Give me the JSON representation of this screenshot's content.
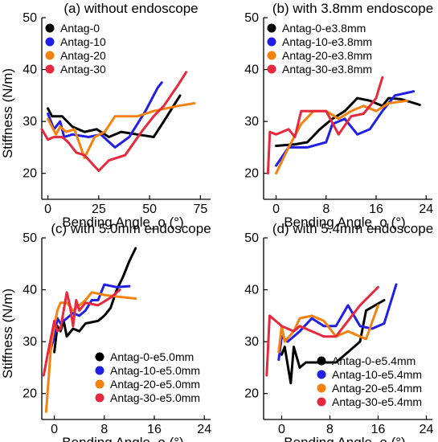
{
  "colors": {
    "Antag-0": "#000000",
    "Antag-10": "#1f1fe6",
    "Antag-20": "#f5820f",
    "Antag-30": "#e8283c"
  },
  "chart_data": [
    {
      "type": "line",
      "title": "(a) without endoscope",
      "xlabel": "Bending Angle_o (°)",
      "ylabel": "Stiffness (N/m)",
      "xlim": [
        -3,
        80
      ],
      "ylim": [
        15,
        50
      ],
      "xticks": [
        0,
        25,
        50,
        75
      ],
      "yticks": [
        20,
        30,
        40,
        50
      ],
      "legend": "top-left",
      "series": [
        {
          "name": "Antag-0",
          "color": "#000000",
          "points": [
            [
              0,
              32.5
            ],
            [
              2,
              31
            ],
            [
              7,
              31
            ],
            [
              12,
              29
            ],
            [
              18,
              28
            ],
            [
              24,
              28.5
            ],
            [
              30,
              27
            ],
            [
              36,
              28
            ],
            [
              44,
              27.5
            ],
            [
              52,
              27
            ],
            [
              57,
              30
            ],
            [
              65,
              35
            ]
          ]
        },
        {
          "name": "Antag-10",
          "color": "#1f1fe6",
          "points": [
            [
              0,
              31.5
            ],
            [
              3,
              28.5
            ],
            [
              6,
              30
            ],
            [
              8,
              27
            ],
            [
              12,
              27.5
            ],
            [
              20,
              27
            ],
            [
              26,
              27.5
            ],
            [
              33,
              25
            ],
            [
              40,
              27
            ],
            [
              48,
              32
            ],
            [
              54,
              36.5
            ],
            [
              56,
              37.5
            ]
          ]
        },
        {
          "name": "Antag-20",
          "color": "#f5820f",
          "points": [
            [
              0,
              30.5
            ],
            [
              4,
              27.5
            ],
            [
              6,
              29
            ],
            [
              9,
              28
            ],
            [
              13,
              28.5
            ],
            [
              18,
              23
            ],
            [
              23,
              27
            ],
            [
              28,
              28
            ],
            [
              33,
              31
            ],
            [
              44,
              31
            ],
            [
              52,
              32
            ],
            [
              64,
              33
            ],
            [
              72,
              33.5
            ]
          ]
        },
        {
          "name": "Antag-30",
          "color": "#e8283c",
          "points": [
            [
              -3,
              28.5
            ],
            [
              0,
              26.5
            ],
            [
              3,
              27
            ],
            [
              7,
              27
            ],
            [
              10,
              26
            ],
            [
              14,
              24
            ],
            [
              18,
              23.5
            ],
            [
              25,
              20.5
            ],
            [
              30,
              22.5
            ],
            [
              38,
              23.5
            ],
            [
              46,
              28
            ],
            [
              52,
              31
            ],
            [
              57,
              33
            ],
            [
              64,
              37
            ],
            [
              68,
              39.5
            ]
          ]
        }
      ]
    },
    {
      "type": "line",
      "title": "(b) with 3.8mm endoscope",
      "xlabel": "Bending Angle_o (°)",
      "ylabel": "",
      "xlim": [
        -2,
        25
      ],
      "ylim": [
        15,
        50
      ],
      "xticks": [
        0,
        8,
        16,
        24
      ],
      "yticks": [
        20,
        30,
        40,
        50
      ],
      "legend": "top-left",
      "series": [
        {
          "name": "Antag-0-e3.8mm",
          "color": "#000000",
          "points": [
            [
              0,
              25.3
            ],
            [
              3,
              25.6
            ],
            [
              5,
              26
            ],
            [
              7,
              28.5
            ],
            [
              9,
              30.5
            ],
            [
              11,
              32
            ],
            [
              13,
              34.5
            ],
            [
              15,
              34
            ],
            [
              17,
              33
            ],
            [
              18,
              34.5
            ],
            [
              20,
              34.3
            ],
            [
              23,
              33.2
            ]
          ]
        },
        {
          "name": "Antag-10-e3.8mm",
          "color": "#1f1fe6",
          "points": [
            [
              0,
              21.5
            ],
            [
              2,
              25
            ],
            [
              5,
              25
            ],
            [
              8,
              26
            ],
            [
              9,
              29.5
            ],
            [
              11,
              30.5
            ],
            [
              13,
              27.5
            ],
            [
              15,
              28.5
            ],
            [
              17,
              32
            ],
            [
              19,
              35
            ],
            [
              22,
              35.8
            ]
          ]
        },
        {
          "name": "Antag-20-e3.8mm",
          "color": "#f5820f",
          "points": [
            [
              0,
              20
            ],
            [
              2,
              25
            ],
            [
              4,
              29.5
            ],
            [
              6,
              32
            ],
            [
              8,
              32
            ],
            [
              10,
              30.5
            ],
            [
              12,
              32
            ],
            [
              14,
              33
            ],
            [
              16,
              32
            ],
            [
              18,
              33.5
            ],
            [
              21,
              34
            ]
          ]
        },
        {
          "name": "Antag-30-e3.8mm",
          "color": "#e8283c",
          "points": [
            [
              -1.3,
              20
            ],
            [
              -1,
              28
            ],
            [
              0,
              27.5
            ],
            [
              1,
              28
            ],
            [
              2,
              28.5
            ],
            [
              3,
              27
            ],
            [
              4,
              32
            ],
            [
              8,
              32
            ],
            [
              10,
              27.5
            ],
            [
              12,
              31
            ],
            [
              14,
              31.5
            ],
            [
              16,
              34.5
            ],
            [
              17,
              38.5
            ]
          ]
        }
      ]
    },
    {
      "type": "line",
      "title": "(c) with 5.0mm endoscope",
      "xlabel": "Bending Angle_o (°)",
      "ylabel": "Stiffness (N/m)",
      "xlim": [
        -2,
        25
      ],
      "ylim": [
        15,
        50
      ],
      "xticks": [
        0,
        8,
        16,
        24
      ],
      "yticks": [
        20,
        30,
        40,
        50
      ],
      "legend": "bottom-right",
      "series": [
        {
          "name": "Antag-0-e5.0mm",
          "color": "#000000",
          "points": [
            [
              0,
              28
            ],
            [
              0.5,
              33
            ],
            [
              1,
              32
            ],
            [
              1.5,
              34
            ],
            [
              2,
              31
            ],
            [
              3,
              32.5
            ],
            [
              4,
              32
            ],
            [
              5,
              33.5
            ],
            [
              7,
              34
            ],
            [
              8,
              35
            ],
            [
              9,
              36.5
            ],
            [
              10,
              40
            ],
            [
              11,
              42.5
            ],
            [
              12,
              45.5
            ],
            [
              13,
              48
            ]
          ]
        },
        {
          "name": "Antag-10-e5.0mm",
          "color": "#1f1fe6",
          "points": [
            [
              -0.7,
              28
            ],
            [
              0,
              31
            ],
            [
              0.5,
              34.5
            ],
            [
              1,
              33.5
            ],
            [
              2,
              34.5
            ],
            [
              3,
              35.5
            ],
            [
              4,
              35
            ],
            [
              5,
              36
            ],
            [
              6,
              38
            ],
            [
              7,
              38
            ],
            [
              8,
              41
            ],
            [
              10,
              40.5
            ],
            [
              12,
              40.7
            ]
          ]
        },
        {
          "name": "Antag-20-e5.0mm",
          "color": "#f5820f",
          "points": [
            [
              -1.3,
              16.5
            ],
            [
              -0.5,
              29.5
            ],
            [
              0,
              33
            ],
            [
              0.5,
              36
            ],
            [
              1,
              37.5
            ],
            [
              2,
              37.5
            ],
            [
              3,
              36
            ],
            [
              4,
              37
            ],
            [
              5,
              38
            ],
            [
              6,
              39.5
            ],
            [
              8,
              39
            ],
            [
              10,
              38.7
            ],
            [
              13,
              38.3
            ]
          ]
        },
        {
          "name": "Antag-30-e5.0mm",
          "color": "#e8283c",
          "points": [
            [
              -1.7,
              23.5
            ],
            [
              -1,
              28
            ],
            [
              -0.5,
              31
            ],
            [
              0,
              34
            ],
            [
              0.5,
              32
            ],
            [
              1,
              32.5
            ],
            [
              2,
              39.5
            ],
            [
              2.5,
              37
            ],
            [
              3,
              33
            ],
            [
              3.5,
              38
            ],
            [
              4,
              36
            ],
            [
              5,
              37.5
            ],
            [
              7,
              37
            ],
            [
              9,
              38.5
            ],
            [
              10.5,
              40
            ]
          ]
        }
      ]
    },
    {
      "type": "line",
      "title": "(d) with 5.4mm endoscope",
      "xlabel": "Bending Angle_o (°)",
      "ylabel": "",
      "xlim": [
        -3,
        25
      ],
      "ylim": [
        15,
        50
      ],
      "xticks": [
        0,
        8,
        16,
        24
      ],
      "yticks": [
        20,
        30,
        40,
        50
      ],
      "legend": "bottom-right",
      "series": [
        {
          "name": "Antag-0-e5.4mm",
          "color": "#000000",
          "points": [
            [
              0,
              27.5
            ],
            [
              0.5,
              29
            ],
            [
              1,
              25.5
            ],
            [
              1.5,
              22
            ],
            [
              2,
              29
            ],
            [
              3,
              25
            ],
            [
              4,
              26
            ],
            [
              7,
              26
            ],
            [
              9,
              26
            ],
            [
              11,
              28
            ],
            [
              13,
              30
            ],
            [
              14,
              36
            ],
            [
              17,
              38
            ]
          ]
        },
        {
          "name": "Antag-10-e5.4mm",
          "color": "#1f1fe6",
          "points": [
            [
              -0.5,
              26.5
            ],
            [
              0,
              31
            ],
            [
              1,
              30
            ],
            [
              3,
              32
            ],
            [
              5,
              34.5
            ],
            [
              7,
              33
            ],
            [
              9,
              33
            ],
            [
              11,
              37
            ],
            [
              13,
              33
            ],
            [
              15,
              32.5
            ],
            [
              17,
              33.5
            ],
            [
              19,
              41
            ]
          ]
        },
        {
          "name": "Antag-20-e5.4mm",
          "color": "#f5820f",
          "points": [
            [
              -0.5,
              28
            ],
            [
              0,
              33
            ],
            [
              0.5,
              30
            ],
            [
              2,
              32
            ],
            [
              3,
              34.5
            ],
            [
              5,
              35
            ],
            [
              7,
              34
            ],
            [
              9,
              31
            ],
            [
              11,
              32
            ],
            [
              14,
              30.5
            ],
            [
              16,
              37
            ]
          ]
        },
        {
          "name": "Antag-30-e5.4mm",
          "color": "#e8283c",
          "points": [
            [
              -2.5,
              23.5
            ],
            [
              -2,
              35
            ],
            [
              0,
              33
            ],
            [
              2,
              32
            ],
            [
              3,
              33
            ],
            [
              5,
              32
            ],
            [
              7,
              31
            ],
            [
              9,
              31
            ],
            [
              11,
              34
            ],
            [
              13,
              37
            ],
            [
              16,
              40.5
            ]
          ]
        }
      ]
    }
  ]
}
